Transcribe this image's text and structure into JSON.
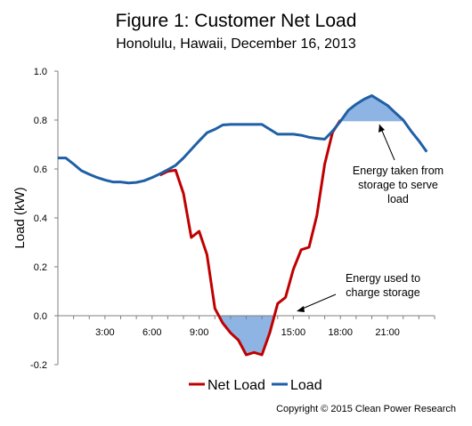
{
  "chart_data": {
    "type": "line",
    "title": "Figure 1: Customer Net Load",
    "subtitle": "Honolulu,  Hawaii, December 16, 2013",
    "xlabel": "",
    "ylabel": "Load (kW)",
    "ylim": [
      -0.2,
      1.0
    ],
    "xlim": [
      0,
      24
    ],
    "y_ticks": [
      "-0.2",
      "0.0",
      "0.2",
      "0.4",
      "0.6",
      "0.8",
      "1.0"
    ],
    "x_ticks": [
      {
        "value": 3,
        "label": "3:00"
      },
      {
        "value": 6,
        "label": "6:00"
      },
      {
        "value": 9,
        "label": "9:00"
      },
      {
        "value": 15,
        "label": "15:00"
      },
      {
        "value": 18,
        "label": "18:00"
      },
      {
        "value": 21,
        "label": "21:00"
      }
    ],
    "grid": false,
    "legend_position": "bottom",
    "series": [
      {
        "name": "Net Load",
        "color": "#c00000",
        "points": [
          [
            6.5,
            0.575
          ],
          [
            7,
            0.59
          ],
          [
            7.5,
            0.595
          ],
          [
            8,
            0.5
          ],
          [
            8.5,
            0.32
          ],
          [
            9,
            0.345
          ],
          [
            9.5,
            0.25
          ],
          [
            10,
            0.03
          ],
          [
            10.5,
            -0.03
          ],
          [
            11,
            -0.07
          ],
          [
            11.5,
            -0.1
          ],
          [
            12,
            -0.16
          ],
          [
            12.5,
            -0.15
          ],
          [
            13,
            -0.16
          ],
          [
            13.5,
            -0.07
          ],
          [
            14,
            0.05
          ],
          [
            14.5,
            0.075
          ],
          [
            15,
            0.19
          ],
          [
            15.5,
            0.27
          ],
          [
            16,
            0.28
          ],
          [
            16.5,
            0.41
          ],
          [
            17,
            0.62
          ],
          [
            17.5,
            0.75
          ],
          [
            18,
            0.8
          ]
        ]
      },
      {
        "name": "Load",
        "color": "#1f5fa6",
        "points": [
          [
            0,
            0.645
          ],
          [
            0.5,
            0.645
          ],
          [
            1,
            0.62
          ],
          [
            1.5,
            0.593
          ],
          [
            2,
            0.578
          ],
          [
            2.5,
            0.565
          ],
          [
            3,
            0.555
          ],
          [
            3.5,
            0.547
          ],
          [
            4,
            0.547
          ],
          [
            4.5,
            0.543
          ],
          [
            5,
            0.545
          ],
          [
            5.5,
            0.552
          ],
          [
            6,
            0.565
          ],
          [
            6.5,
            0.58
          ],
          [
            7,
            0.597
          ],
          [
            7.5,
            0.615
          ],
          [
            8,
            0.645
          ],
          [
            8.5,
            0.68
          ],
          [
            9,
            0.715
          ],
          [
            9.5,
            0.748
          ],
          [
            10,
            0.762
          ],
          [
            10.5,
            0.78
          ],
          [
            11,
            0.782
          ],
          [
            11.5,
            0.782
          ],
          [
            12,
            0.782
          ],
          [
            12.5,
            0.782
          ],
          [
            13,
            0.782
          ],
          [
            13.5,
            0.762
          ],
          [
            14,
            0.742
          ],
          [
            14.5,
            0.742
          ],
          [
            15,
            0.742
          ],
          [
            15.5,
            0.738
          ],
          [
            16,
            0.73
          ],
          [
            16.5,
            0.725
          ],
          [
            17,
            0.722
          ],
          [
            17.5,
            0.755
          ],
          [
            18,
            0.795
          ],
          [
            18.5,
            0.84
          ],
          [
            19,
            0.865
          ],
          [
            19.5,
            0.885
          ],
          [
            20,
            0.9
          ],
          [
            20.5,
            0.88
          ],
          [
            21,
            0.86
          ],
          [
            21.5,
            0.83
          ],
          [
            22,
            0.8
          ],
          [
            22.5,
            0.755
          ],
          [
            23,
            0.715
          ],
          [
            23.5,
            0.67
          ]
        ]
      }
    ],
    "annotations": [
      {
        "lines": [
          "Energy taken from",
          "storage to serve",
          "load"
        ]
      },
      {
        "lines": [
          "Energy used to",
          "charge storage"
        ]
      }
    ]
  },
  "copyright": "Copyright © 2015 Clean Power Research",
  "colors": {
    "net_load": "#c00000",
    "load": "#1f5fa6",
    "fill": "#8eb4e3",
    "axis": "#7f7f7f"
  }
}
